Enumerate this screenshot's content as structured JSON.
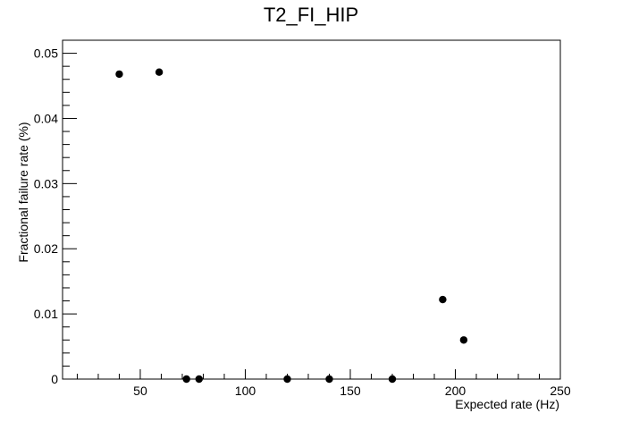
{
  "chart_data": {
    "type": "scatter",
    "title": "T2_FI_HIP",
    "xlabel": "Expected rate (Hz)",
    "ylabel": "Fractional failure rate (%)",
    "xlim": [
      13,
      250
    ],
    "ylim": [
      0,
      0.052
    ],
    "x_ticks": [
      50,
      100,
      150,
      200,
      250
    ],
    "x_tick_labels": [
      "50",
      "100",
      "150",
      "200",
      "250"
    ],
    "y_ticks": [
      0,
      0.01,
      0.02,
      0.03,
      0.04,
      0.05
    ],
    "y_tick_labels": [
      "0",
      "0.01",
      "0.02",
      "0.03",
      "0.04",
      "0.05"
    ],
    "grid": false,
    "marker_color": "#000000",
    "series": [
      {
        "x": [
          40,
          59,
          72,
          78,
          120,
          140,
          170,
          194,
          204
        ],
        "y": [
          0.0468,
          0.0471,
          0,
          0,
          0,
          0,
          0,
          0.0122,
          0.006
        ]
      }
    ]
  }
}
